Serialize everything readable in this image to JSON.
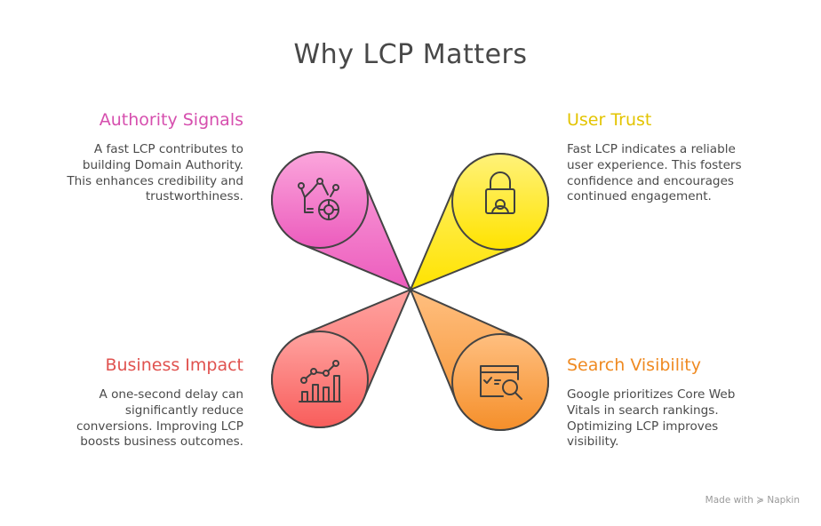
{
  "title": "Why LCP Matters",
  "items": [
    {
      "title": "Authority Signals",
      "text": "A fast LCP contributes to building Domain Authority. This enhances credibility and trustworthiness.",
      "icon": "crown-badge-icon",
      "color": "#d64fae"
    },
    {
      "title": "User Trust",
      "text": "Fast LCP indicates a reliable user experience. This fosters confidence and encourages continued engagement.",
      "icon": "lock-user-icon",
      "color": "#e3c400"
    },
    {
      "title": "Business Impact",
      "text": "A one-second delay can significantly reduce conversions. Improving LCP boosts business outcomes.",
      "icon": "growth-chart-icon",
      "color": "#e0524f"
    },
    {
      "title": "Search Visibility",
      "text": "Google prioritizes Core Web Vitals in search rankings. Optimizing LCP improves visibility.",
      "icon": "search-window-icon",
      "color": "#ef8a22"
    }
  ],
  "footer": {
    "made_with": "Made with",
    "brand": "Napkin"
  }
}
